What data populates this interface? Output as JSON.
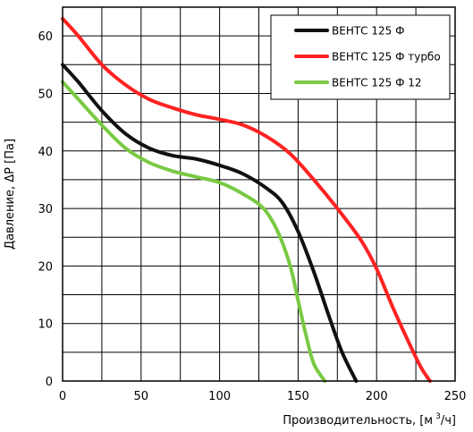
{
  "chart_data": {
    "type": "line",
    "xlabel": "Производительность, [м",
    "xlabel_sup": "3",
    "xlabel_end": "/ч]",
    "ylabel": "Давление, ΔP [Па]",
    "xlim": [
      0,
      250
    ],
    "ylim": [
      0,
      65
    ],
    "x_ticks": [
      "0",
      "50",
      "100",
      "150",
      "200",
      "250"
    ],
    "y_ticks": [
      "0",
      "10",
      "20",
      "30",
      "40",
      "50",
      "60"
    ],
    "grid": true,
    "legend_position": "top-right",
    "series": [
      {
        "name": "ВЕНТС 125 Ф",
        "color": "#111111",
        "points": [
          [
            0,
            55
          ],
          [
            10,
            52
          ],
          [
            25,
            47
          ],
          [
            40,
            43
          ],
          [
            55,
            40.5
          ],
          [
            70,
            39.2
          ],
          [
            85,
            38.6
          ],
          [
            100,
            37.5
          ],
          [
            115,
            36
          ],
          [
            130,
            33.5
          ],
          [
            140,
            31
          ],
          [
            150,
            26
          ],
          [
            160,
            19
          ],
          [
            170,
            11
          ],
          [
            178,
            5
          ],
          [
            187,
            0
          ]
        ]
      },
      {
        "name": "ВЕНТС 125 Ф турбо",
        "color": "#ff2222",
        "points": [
          [
            0,
            63
          ],
          [
            10,
            60
          ],
          [
            25,
            55
          ],
          [
            40,
            51.5
          ],
          [
            55,
            49
          ],
          [
            70,
            47.5
          ],
          [
            85,
            46.3
          ],
          [
            100,
            45.5
          ],
          [
            115,
            44.5
          ],
          [
            130,
            42.5
          ],
          [
            145,
            39.5
          ],
          [
            160,
            35
          ],
          [
            175,
            30
          ],
          [
            190,
            24.5
          ],
          [
            200,
            19.5
          ],
          [
            210,
            13
          ],
          [
            220,
            7
          ],
          [
            228,
            2.5
          ],
          [
            234,
            0
          ]
        ]
      },
      {
        "name": "ВЕНТС 125 Ф 12",
        "color": "#7ac943",
        "points": [
          [
            0,
            52
          ],
          [
            10,
            49
          ],
          [
            25,
            44.5
          ],
          [
            40,
            40.5
          ],
          [
            55,
            38
          ],
          [
            70,
            36.5
          ],
          [
            85,
            35.5
          ],
          [
            100,
            34.5
          ],
          [
            115,
            32.5
          ],
          [
            128,
            30
          ],
          [
            137,
            26
          ],
          [
            145,
            20
          ],
          [
            150,
            14
          ],
          [
            155,
            8
          ],
          [
            160,
            3
          ],
          [
            167,
            0
          ]
        ]
      }
    ]
  }
}
